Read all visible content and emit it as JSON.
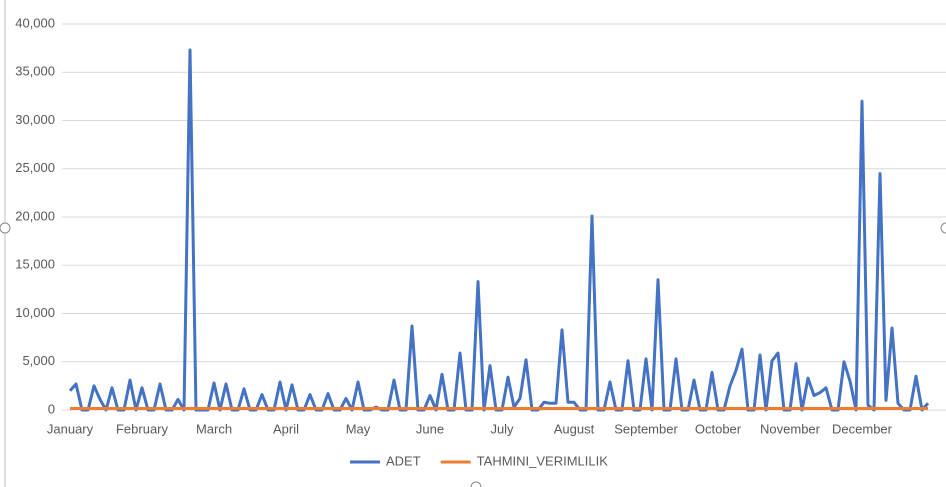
{
  "chart_data": {
    "type": "line",
    "categories": [
      "January",
      null,
      null,
      null,
      null,
      null,
      null,
      null,
      null,
      null,
      null,
      null,
      "February",
      null,
      null,
      null,
      null,
      null,
      null,
      null,
      null,
      null,
      null,
      null,
      "March",
      null,
      null,
      null,
      null,
      null,
      null,
      null,
      null,
      null,
      null,
      null,
      "April",
      null,
      null,
      null,
      null,
      null,
      null,
      null,
      null,
      null,
      null,
      null,
      "May",
      null,
      null,
      null,
      null,
      null,
      null,
      null,
      null,
      null,
      null,
      null,
      "June",
      null,
      null,
      null,
      null,
      null,
      null,
      null,
      null,
      null,
      null,
      null,
      "July",
      null,
      null,
      null,
      null,
      null,
      null,
      null,
      null,
      null,
      null,
      null,
      "August",
      null,
      null,
      null,
      null,
      null,
      null,
      null,
      null,
      null,
      null,
      null,
      "September",
      null,
      null,
      null,
      null,
      null,
      null,
      null,
      null,
      null,
      null,
      null,
      "October",
      null,
      null,
      null,
      null,
      null,
      null,
      null,
      null,
      null,
      null,
      null,
      "November",
      null,
      null,
      null,
      null,
      null,
      null,
      null,
      null,
      null,
      null,
      null,
      "December",
      null,
      null,
      null,
      null,
      null,
      null,
      null,
      null,
      null,
      null,
      null
    ],
    "series": [
      {
        "name": "ADET",
        "color": "#4472c4",
        "values": [
          2000,
          2700,
          0,
          0,
          2500,
          1100,
          0,
          2300,
          0,
          0,
          3100,
          0,
          2300,
          0,
          0,
          2700,
          0,
          0,
          1100,
          0,
          37300,
          0,
          0,
          0,
          2800,
          0,
          2700,
          0,
          0,
          2200,
          0,
          0,
          1600,
          0,
          0,
          2900,
          0,
          2600,
          0,
          0,
          1600,
          0,
          0,
          1700,
          0,
          0,
          1200,
          0,
          2900,
          0,
          0,
          300,
          0,
          0,
          3100,
          0,
          0,
          8700,
          0,
          0,
          1500,
          0,
          3700,
          0,
          0,
          5900,
          0,
          0,
          13300,
          0,
          4600,
          0,
          0,
          3400,
          300,
          1200,
          5200,
          0,
          0,
          800,
          700,
          700,
          8300,
          800,
          800,
          0,
          0,
          20100,
          0,
          0,
          2900,
          0,
          0,
          5100,
          0,
          0,
          5300,
          0,
          13500,
          0,
          0,
          5300,
          0,
          0,
          3100,
          0,
          0,
          3900,
          0,
          0,
          2500,
          4100,
          6300,
          0,
          0,
          5700,
          0,
          5100,
          5900,
          0,
          0,
          4800,
          0,
          3300,
          1500,
          1800,
          2300,
          0,
          0,
          5000,
          3000,
          0,
          32000,
          500,
          0,
          24500,
          1000,
          8500,
          700,
          0,
          0,
          3500,
          0,
          700
        ]
      },
      {
        "name": "TAHMINI_VERIMLILIK",
        "color": "#ed7d31",
        "values": [
          150,
          150,
          150,
          150,
          150,
          150,
          150,
          150,
          150,
          150,
          150,
          150,
          150,
          150,
          150,
          150,
          150,
          150,
          150,
          150,
          150,
          150,
          150,
          150,
          150,
          150,
          150,
          150,
          150,
          150,
          150,
          150,
          150,
          150,
          150,
          150,
          150,
          150,
          150,
          150,
          150,
          150,
          150,
          150,
          150,
          150,
          150,
          150,
          150,
          150,
          150,
          150,
          150,
          150,
          150,
          150,
          150,
          150,
          150,
          150,
          150,
          150,
          150,
          150,
          150,
          150,
          150,
          150,
          150,
          150,
          150,
          150,
          150,
          150,
          150,
          150,
          150,
          150,
          150,
          150,
          150,
          150,
          150,
          150,
          150,
          150,
          150,
          150,
          150,
          150,
          150,
          150,
          150,
          150,
          150,
          150,
          150,
          150,
          150,
          150,
          150,
          150,
          150,
          150,
          150,
          150,
          150,
          150,
          150,
          150,
          150,
          150,
          150,
          150,
          150,
          150,
          150,
          150,
          150,
          150,
          150,
          150,
          150,
          150,
          150,
          150,
          150,
          150,
          150,
          150,
          150,
          150,
          150,
          150,
          150,
          150,
          150,
          150,
          150,
          150,
          150,
          150,
          150,
          150
        ]
      }
    ],
    "ylim": [
      0,
      40000
    ],
    "yticks": [
      0,
      {
        "value": 5000,
        "label": "5,000"
      },
      {
        "value": 10000,
        "label": "10,000"
      },
      {
        "value": 15000,
        "label": "15,000"
      },
      {
        "value": 20000,
        "label": "20,000"
      },
      {
        "value": 25000,
        "label": "25,000"
      },
      {
        "value": 30000,
        "label": "30,000"
      },
      {
        "value": 35000,
        "label": "35,000"
      },
      {
        "value": 40000,
        "label": "40,000"
      }
    ],
    "grid": true,
    "legend": "bottom"
  }
}
